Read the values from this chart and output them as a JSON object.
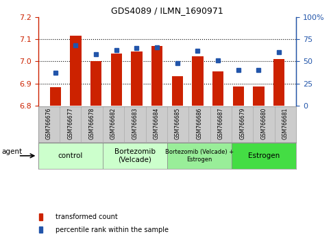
{
  "title": "GDS4089 / ILMN_1690971",
  "samples": [
    "GSM766676",
    "GSM766677",
    "GSM766678",
    "GSM766682",
    "GSM766683",
    "GSM766684",
    "GSM766685",
    "GSM766686",
    "GSM766687",
    "GSM766679",
    "GSM766680",
    "GSM766681"
  ],
  "transformed_count": [
    6.885,
    7.115,
    7.002,
    7.035,
    7.045,
    7.068,
    6.932,
    7.022,
    6.955,
    6.888,
    6.887,
    7.01
  ],
  "percentile_rank": [
    37,
    68,
    58,
    63,
    65,
    66,
    48,
    62,
    51,
    40,
    40,
    60
  ],
  "ylim_left": [
    6.8,
    7.2
  ],
  "ylim_right": [
    0,
    100
  ],
  "yticks_left": [
    6.8,
    6.9,
    7.0,
    7.1,
    7.2
  ],
  "yticks_right": [
    0,
    25,
    50,
    75,
    100
  ],
  "bar_color": "#cc2200",
  "dot_color": "#2255aa",
  "bar_bottom": 6.8,
  "group_labels": [
    "control",
    "Bortezomib\n(Velcade)",
    "Bortezomib (Velcade) +\nEstrogen",
    "Estrogen"
  ],
  "group_ranges": [
    [
      0,
      3
    ],
    [
      3,
      6
    ],
    [
      6,
      9
    ],
    [
      9,
      12
    ]
  ],
  "group_colors": [
    "#ccffcc",
    "#ccffcc",
    "#99ee99",
    "#44dd44"
  ],
  "agent_label": "agent",
  "legend_bar_label": "transformed count",
  "legend_dot_label": "percentile rank within the sample",
  "background_color": "#ffffff",
  "xtick_bg_color": "#cccccc",
  "grid_yticks": [
    6.9,
    7.0,
    7.1
  ]
}
